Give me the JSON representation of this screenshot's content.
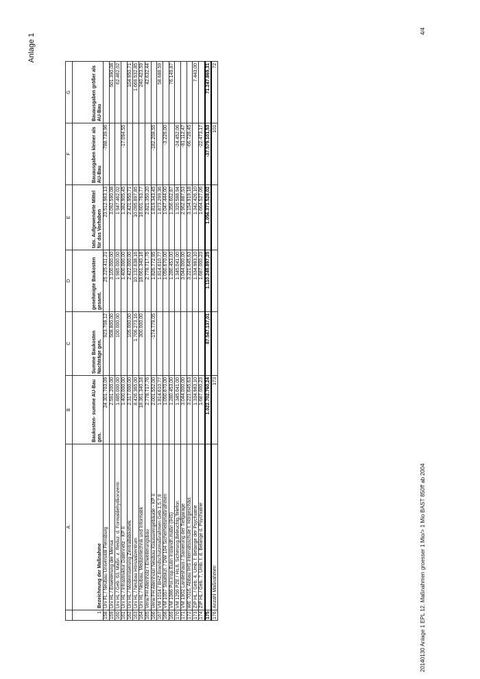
{
  "page": {
    "label": "Anlage 1",
    "footer": "20140130 Anlage 1 EPL 12. Maßnahmen groesser 1 Mio/> 1 Mio BAST 850ff ab 2004",
    "page_number": "4/4"
  },
  "table": {
    "column_letters": [
      "",
      "A",
      "B",
      "C",
      "D",
      "E",
      "F",
      "G"
    ],
    "header_row_number": "1",
    "headers": [
      "Bezeichnung der Maßnahme",
      "Baukosten- summe AU-Bau gen.",
      "Summe Baukosten Nachträge gen.",
      "genehmigte Baukosten gesamt.",
      "tats. Aufgewendete Mittel für das Vorhaben",
      "Bauausgaben kleiner als AU-Bau",
      "Bauausgaben größer als AU-Bau"
    ],
    "rows": [
      [
        "158",
        "Uni FL / Neubau Universität Flensburg",
        "24.301.703,09",
        "923.708,12",
        "25.225.411,21",
        "23.512.963,13",
        "-788.739,96",
        ""
      ],
      [
        "159",
        "Uni HL / Erweiterung der Mensa",
        "2.591.200,00",
        "508.800,00",
        "3.100.000,00",
        "3.092.590,08",
        "",
        "501.390,08"
      ],
      [
        "160",
        "Uni HL / Geb. 63, Maßn. z. Reduz. d. Formaldehydkonzentr.",
        "1.885.000,00",
        "100.000,00",
        "1.985.000,00",
        "1.947.462,02",
        "",
        "62.462,02"
      ],
      [
        "161",
        "Uni HL / Infrastruktur Datennetz - KP II",
        "1.400.000,00",
        "",
        "1.400.000,00",
        "1.382.905,45",
        "-17.094,55",
        ""
      ],
      [
        "162",
        "Uni HL / Modernisierung Zentralbibliothek",
        "2.317.000,00",
        "105.000,00",
        "2.422.000,00",
        "2.421.950,71",
        "",
        "104.950,71"
      ],
      [
        "163",
        "Uni HL / Neubau Hörsaalzentrum",
        "8.426.365,00",
        "1.706.273,16",
        "10.132.638,16",
        "10.095.897,85",
        "",
        "1.669.532,85"
      ],
      [
        "164",
        "Uni HL / Neubau, Medizintechnik und Informatik",
        "18.361.340,18",
        "300.000,00",
        "18.661.340,18",
        "18.601.763,77",
        "",
        "240.423,59"
      ],
      [
        "165",
        "Verw.FH Altenholz / Erweiterungsbau",
        "2.778.717,76",
        "",
        "2.778.717,76",
        "2.821.350,20",
        "",
        "42.632,44"
      ],
      [
        "166",
        "Verw.FH Altenholz/ Neubau Klausurengebäude - KP II",
        "2.001.552,00",
        "-174.779,05",
        "1.826.772,95",
        "1.819.343,45",
        "-182.208,55",
        ""
      ],
      [
        "167",
        "VM 1014 / BHZ,Brandschutzmaßnahmen Geb.1,5,7,9",
        "1.814.610,77",
        "",
        "1.814.610,77",
        "1.873.299,36",
        "",
        "58.688,59"
      ],
      [
        "168",
        "VM 1057 Staatskzl. / DW 104 Sicherheitsmaßnahmen",
        "1.050.670,00",
        "",
        "1.050.670,00",
        "1.047.444,00",
        "-3.226,00",
        ""
      ],
      [
        "169",
        "VM 1086 Pol.Insp.Eutin Instandh.maßn (IHS)",
        "1.280.453,00",
        "",
        "1.280.453,00",
        "1.356.602,87",
        "",
        "76.149,87"
      ],
      [
        "170",
        "VM 1256 PZE / Hs.8, Sicherung,Beleuchtg,Telefon",
        "1.345.041,00",
        "",
        "1.345.041,00",
        "1.320.588,94",
        "-24.452,06",
        ""
      ],
      [
        "171",
        "VM 1902 Landeshaus / Sanierung der Tiefgarage",
        "3.044.000,00",
        "",
        "3.044.000,00",
        "2.962.887,53",
        "-81.112,47",
        ""
      ],
      [
        "172",
        "WE 7016, Abbau IHS Internatsschule f. Hörgeschäd.",
        "3.221.645,63",
        "",
        "3.221.645,63",
        "3.154.919,18",
        "-66.726,45",
        ""
      ],
      [
        "173",
        "ZIP HL / Geb. 4, Umb. f. Belange der Psychiatrie",
        "1.334.983,10",
        "",
        "1.334.983,10",
        "1.342.426,10",
        "",
        "7.443,00"
      ],
      [
        "174",
        "ZIP HL / Geb. 7, Umb. f. d. Belange d. Psychiatrie",
        "1.687.000,23",
        "",
        "1.687.000,23",
        "1.664.527,06",
        "-22.473,17",
        ""
      ],
      [
        "175",
        "",
        "1.022.702.760,24",
        "87.547.137,01",
        "1.110.249.897,25",
        "1.056.371.528,02",
        "-37.579.101,53",
        "71.247.869,31"
      ],
      [
        "176",
        "Anzahl Maßnahmen",
        "173",
        "",
        "",
        "",
        "101",
        "72"
      ]
    ]
  }
}
